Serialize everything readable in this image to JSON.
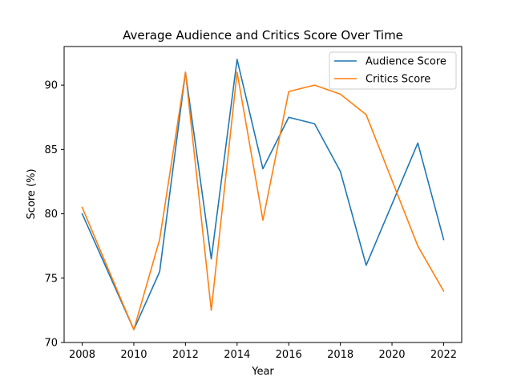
{
  "chart_data": {
    "type": "line",
    "title": "Average Audience and Critics Score Over Time",
    "xlabel": "Year",
    "ylabel": "Score (%)",
    "xlim": [
      2007.3,
      2022.7
    ],
    "ylim": [
      70,
      93
    ],
    "xticks": [
      2008,
      2010,
      2012,
      2014,
      2016,
      2018,
      2020,
      2022
    ],
    "yticks": [
      70,
      75,
      80,
      85,
      90
    ],
    "grid": false,
    "legend_position": "top-right",
    "series": [
      {
        "name": "Audience Score",
        "color": "#1f77b4",
        "x": [
          2008,
          2010,
          2011,
          2012,
          2013,
          2014,
          2015,
          2016,
          2017,
          2018,
          2019,
          2021,
          2022
        ],
        "y": [
          80,
          71,
          75.5,
          91,
          76.5,
          92,
          83.5,
          87.5,
          87,
          83.3,
          76,
          85.5,
          78
        ]
      },
      {
        "name": "Critics Score",
        "color": "#ff7f0e",
        "x": [
          2008,
          2010,
          2011,
          2012,
          2013,
          2014,
          2015,
          2016,
          2017,
          2018,
          2019,
          2021,
          2022
        ],
        "y": [
          80.5,
          71,
          78,
          91,
          72.5,
          91,
          79.5,
          89.5,
          90,
          89.3,
          87.7,
          77.5,
          74
        ]
      }
    ]
  }
}
